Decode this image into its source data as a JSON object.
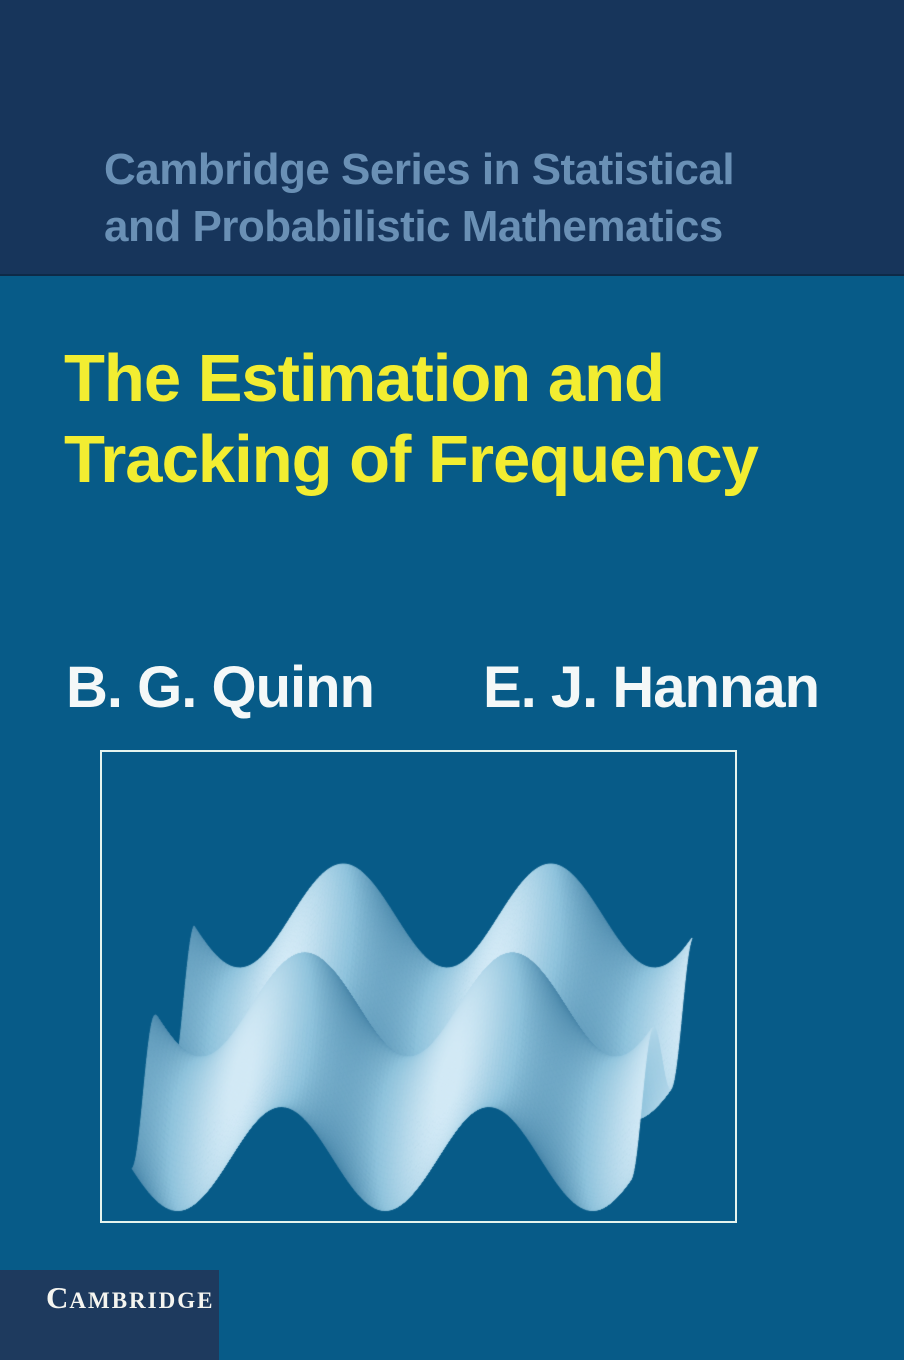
{
  "cover": {
    "series_line1": "Cambridge Series in Statistical",
    "series_line2": "and Probabilistic Mathematics",
    "title_line1": "The Estimation and",
    "title_line2": "Tracking of Frequency",
    "author_left": "B. G. Quinn",
    "author_right": "E. J. Hannan",
    "publisher_initial": "C",
    "publisher_rest": "AMBRIDGE"
  },
  "colors": {
    "top_band_navy": "#17355b",
    "background_teal": "#075b88",
    "series_text_blue": "#6a90b5",
    "title_yellow": "#f2ed31",
    "author_white": "#f4f8f8",
    "figure_border_white": "#e5f4ee",
    "publisher_block_navy": "#1e3a5e",
    "publisher_text_white": "#f5f5f0"
  },
  "figure": {
    "description": "3D surface plot of superimposed sinusoidal waves (egg-carton surface) rendered in light blue on teal",
    "surface": {
      "periods_x": 2.4,
      "phase_x": -2.95,
      "periods_y": 1.54,
      "phase_y": -1.81,
      "palette_dark": "#2e6f96",
      "palette_mid": "#8fc3dc",
      "palette_light": "#d3eaf6"
    }
  }
}
